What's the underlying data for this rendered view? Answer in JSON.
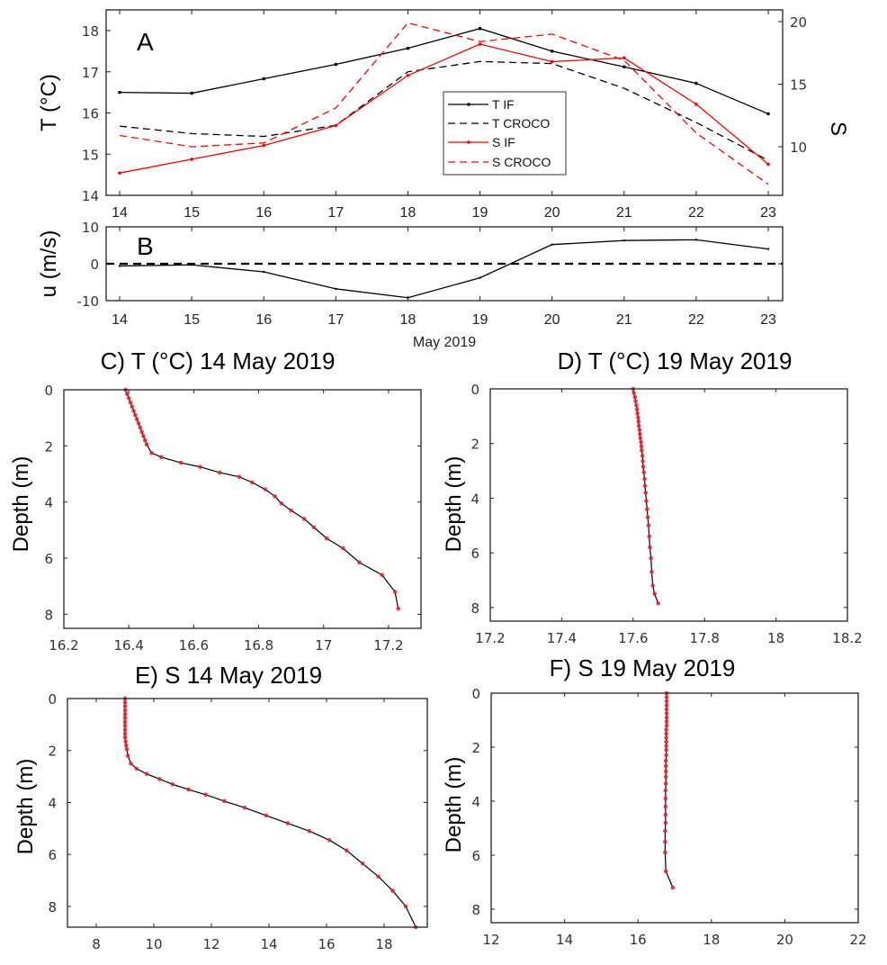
{
  "chart_data": [
    {
      "id": "A",
      "type": "line",
      "panel_label": "A",
      "x": [
        14,
        15,
        16,
        17,
        18,
        19,
        20,
        21,
        22,
        23
      ],
      "xticks": [
        "14",
        "15",
        "16",
        "17",
        "18",
        "19",
        "20",
        "21",
        "22",
        "23"
      ],
      "xlim": [
        14,
        23
      ],
      "ylabel": "T (°C)",
      "ylim": [
        14,
        18.25
      ],
      "yticks": [
        14,
        15,
        16,
        17,
        18
      ],
      "y2label": "S",
      "y2lim": [
        6.1,
        20.9
      ],
      "y2ticks": [
        10,
        15,
        20
      ],
      "legend_position": "center",
      "series": [
        {
          "name": "T IF",
          "axis": "left",
          "color": "#000000",
          "style": "solid",
          "markers": true,
          "values": [
            16.5,
            16.48,
            16.83,
            17.18,
            17.57,
            18.05,
            17.5,
            17.12,
            16.72,
            15.98
          ]
        },
        {
          "name": "T CROCO",
          "axis": "left",
          "color": "#000000",
          "style": "dashed",
          "markers": false,
          "values": [
            15.68,
            15.5,
            15.43,
            15.7,
            17.0,
            17.25,
            17.2,
            16.6,
            15.77,
            14.85
          ]
        },
        {
          "name": "S IF",
          "axis": "right",
          "color": "#ff0000",
          "style": "solid",
          "markers": true,
          "values": [
            7.9,
            9.0,
            10.1,
            11.7,
            15.7,
            18.2,
            16.8,
            17.1,
            13.4,
            8.6
          ]
        },
        {
          "name": "S CROCO",
          "axis": "right",
          "color": "#ff0000",
          "style": "dashed",
          "markers": false,
          "values": [
            10.9,
            10.0,
            10.3,
            13.1,
            19.9,
            18.4,
            19.0,
            16.9,
            11.1,
            7.0
          ]
        }
      ]
    },
    {
      "id": "B",
      "type": "line",
      "panel_label": "B",
      "x": [
        14,
        15,
        16,
        17,
        18,
        19,
        20,
        21,
        22,
        23
      ],
      "xticks": [
        "14",
        "15",
        "16",
        "17",
        "18",
        "19",
        "20",
        "21",
        "22",
        "23"
      ],
      "xlim": [
        14,
        23
      ],
      "xlabel": "May 2019",
      "ylabel": "u (m/s)",
      "ylim": [
        -10,
        10
      ],
      "yticks": [
        -10,
        0,
        10
      ],
      "zero_line": {
        "value": 0,
        "style": "dashed",
        "color": "#000000"
      },
      "series": [
        {
          "name": "u",
          "color": "#000000",
          "style": "solid",
          "values": [
            -0.6,
            -0.3,
            -2.2,
            -6.8,
            -9.2,
            -3.8,
            5.2,
            6.3,
            6.5,
            4.0
          ]
        }
      ]
    },
    {
      "id": "C",
      "type": "line",
      "title": "C) T (°C) 14 May 2019",
      "ylabel": "Depth (m)",
      "xlim": [
        16.2,
        17.3
      ],
      "xticks": [
        16.2,
        16.4,
        16.6,
        16.8,
        17.0,
        17.2
      ],
      "xtick_labels": [
        "16.2",
        "16.4",
        "16.6",
        "16.8",
        "17",
        "17.2"
      ],
      "ylim": [
        0,
        8.5
      ],
      "yticks": [
        0,
        2,
        4,
        6,
        8
      ],
      "y_reversed": true,
      "line_color": "#000000",
      "marker_color": "#e8202a",
      "profile": {
        "values": [
          16.39,
          16.395,
          16.4,
          16.405,
          16.41,
          16.415,
          16.42,
          16.425,
          16.43,
          16.435,
          16.44,
          16.445,
          16.45,
          16.455,
          16.47,
          16.5,
          16.56,
          16.62,
          16.68,
          16.74,
          16.78,
          16.82,
          16.85,
          16.87,
          16.9,
          16.94,
          16.97,
          17.01,
          17.06,
          17.11,
          17.18,
          17.22,
          17.23
        ],
        "depths": [
          0.0,
          0.15,
          0.3,
          0.45,
          0.6,
          0.75,
          0.9,
          1.05,
          1.2,
          1.35,
          1.5,
          1.65,
          1.8,
          1.95,
          2.25,
          2.4,
          2.6,
          2.75,
          2.95,
          3.1,
          3.3,
          3.55,
          3.8,
          4.05,
          4.3,
          4.6,
          4.9,
          5.3,
          5.65,
          6.15,
          6.6,
          7.2,
          7.8
        ]
      }
    },
    {
      "id": "D",
      "type": "line",
      "title": "D) T (°C) 19 May 2019",
      "ylabel": "Depth (m)",
      "xlim": [
        17.2,
        18.2
      ],
      "xticks": [
        17.2,
        17.4,
        17.6,
        17.8,
        18.0,
        18.2
      ],
      "xtick_labels": [
        "17.2",
        "17.4",
        "17.6",
        "17.8",
        "18",
        "18.2"
      ],
      "ylim": [
        0,
        8.5
      ],
      "yticks": [
        0,
        2,
        4,
        6,
        8
      ],
      "y_reversed": true,
      "line_color": "#000000",
      "marker_color": "#e8202a",
      "profile": {
        "values": [
          17.6,
          17.602,
          17.605,
          17.607,
          17.609,
          17.611,
          17.612,
          17.614,
          17.615,
          17.616,
          17.618,
          17.619,
          17.62,
          17.622,
          17.623,
          17.624,
          17.626,
          17.627,
          17.628,
          17.63,
          17.632,
          17.633,
          17.635,
          17.637,
          17.639,
          17.641,
          17.643,
          17.645,
          17.647,
          17.65,
          17.652,
          17.655,
          17.66,
          17.67
        ],
        "depths": [
          0.0,
          0.15,
          0.3,
          0.45,
          0.6,
          0.75,
          0.9,
          1.05,
          1.2,
          1.35,
          1.5,
          1.65,
          1.8,
          1.95,
          2.1,
          2.25,
          2.45,
          2.65,
          2.85,
          3.05,
          3.3,
          3.55,
          3.8,
          4.1,
          4.4,
          4.7,
          5.0,
          5.4,
          5.8,
          6.2,
          6.7,
          7.2,
          7.5,
          7.85
        ]
      }
    },
    {
      "id": "E",
      "type": "line",
      "title": "E) S 14 May 2019",
      "ylabel": "Depth (m)",
      "xlim": [
        7,
        19.5
      ],
      "xticks": [
        8,
        10,
        12,
        14,
        16,
        18
      ],
      "xtick_labels": [
        "8",
        "10",
        "12",
        "14",
        "16",
        "18"
      ],
      "ylim": [
        0,
        8.8
      ],
      "yticks": [
        0,
        2,
        4,
        6,
        8
      ],
      "y_reversed": true,
      "line_color": "#000000",
      "marker_color": "#e8202a",
      "profile": {
        "values": [
          9.0,
          9.0,
          9.0,
          9.0,
          9.0,
          9.0,
          9.0,
          9.0,
          9.0,
          9.0,
          9.0,
          9.02,
          9.04,
          9.06,
          9.1,
          9.2,
          9.4,
          9.75,
          10.2,
          10.65,
          11.2,
          11.8,
          12.45,
          13.15,
          13.9,
          14.65,
          15.4,
          16.1,
          16.7,
          17.25,
          17.8,
          18.3,
          18.75,
          19.1
        ],
        "depths": [
          0.0,
          0.15,
          0.3,
          0.45,
          0.6,
          0.75,
          0.9,
          1.05,
          1.2,
          1.35,
          1.5,
          1.65,
          1.8,
          1.95,
          2.2,
          2.5,
          2.7,
          2.9,
          3.1,
          3.3,
          3.5,
          3.7,
          3.95,
          4.2,
          4.5,
          4.8,
          5.1,
          5.45,
          5.85,
          6.35,
          6.85,
          7.4,
          8.0,
          8.8
        ]
      }
    },
    {
      "id": "F",
      "type": "line",
      "title": "F) S 19 May 2019",
      "ylabel": "Depth (m)",
      "xlim": [
        12,
        22
      ],
      "xticks": [
        12,
        14,
        16,
        18,
        20,
        22
      ],
      "xtick_labels": [
        "12",
        "14",
        "16",
        "18",
        "20",
        "22"
      ],
      "ylim": [
        0,
        8.5
      ],
      "yticks": [
        0,
        2,
        4,
        6,
        8
      ],
      "y_reversed": true,
      "line_color": "#000000",
      "marker_color": "#e8202a",
      "profile": {
        "values": [
          16.78,
          16.78,
          16.78,
          16.78,
          16.78,
          16.78,
          16.78,
          16.78,
          16.78,
          16.77,
          16.77,
          16.77,
          16.77,
          16.77,
          16.77,
          16.77,
          16.76,
          16.76,
          16.76,
          16.76,
          16.76,
          16.75,
          16.75,
          16.75,
          16.75,
          16.75,
          16.74,
          16.74,
          16.74,
          16.76,
          16.95
        ],
        "depths": [
          0.0,
          0.15,
          0.3,
          0.45,
          0.6,
          0.75,
          0.9,
          1.05,
          1.2,
          1.35,
          1.5,
          1.65,
          1.8,
          1.95,
          2.1,
          2.3,
          2.5,
          2.7,
          2.9,
          3.1,
          3.35,
          3.6,
          3.9,
          4.2,
          4.5,
          4.8,
          5.1,
          5.5,
          5.9,
          6.6,
          7.2
        ]
      }
    }
  ]
}
